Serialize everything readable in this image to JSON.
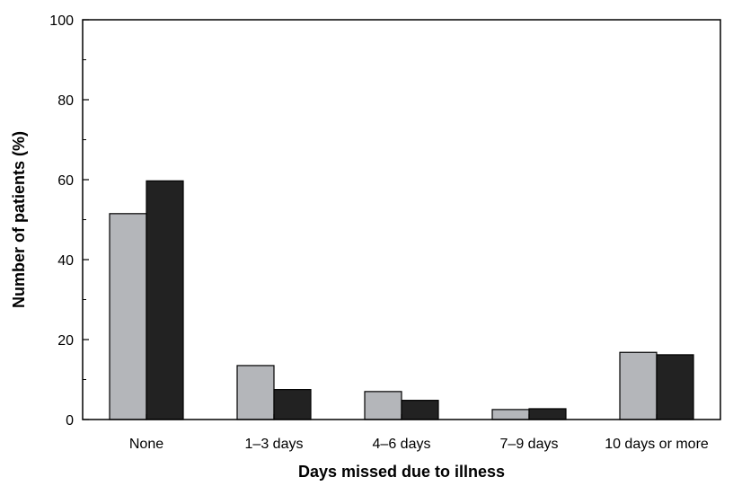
{
  "chart_data": {
    "type": "bar",
    "title": "",
    "xlabel": "Days missed due to illness",
    "ylabel": "Number of patients (%)",
    "ylim": [
      0,
      100
    ],
    "y_ticks": [
      0,
      20,
      40,
      60,
      80,
      100
    ],
    "y_tick_labels": [
      "0",
      "20",
      "40",
      "60",
      "80",
      "100"
    ],
    "categories": [
      "None",
      "1–3 days",
      "4–6 days",
      "7–9 days",
      "10 days or more"
    ],
    "series": [
      {
        "values": [
          51.5,
          13.5,
          7.0,
          2.5,
          16.8
        ],
        "color": "#b4b6ba"
      },
      {
        "values": [
          59.7,
          7.5,
          4.8,
          2.7,
          16.2
        ],
        "color": "#222222"
      }
    ],
    "grid": false,
    "legend": "none"
  }
}
